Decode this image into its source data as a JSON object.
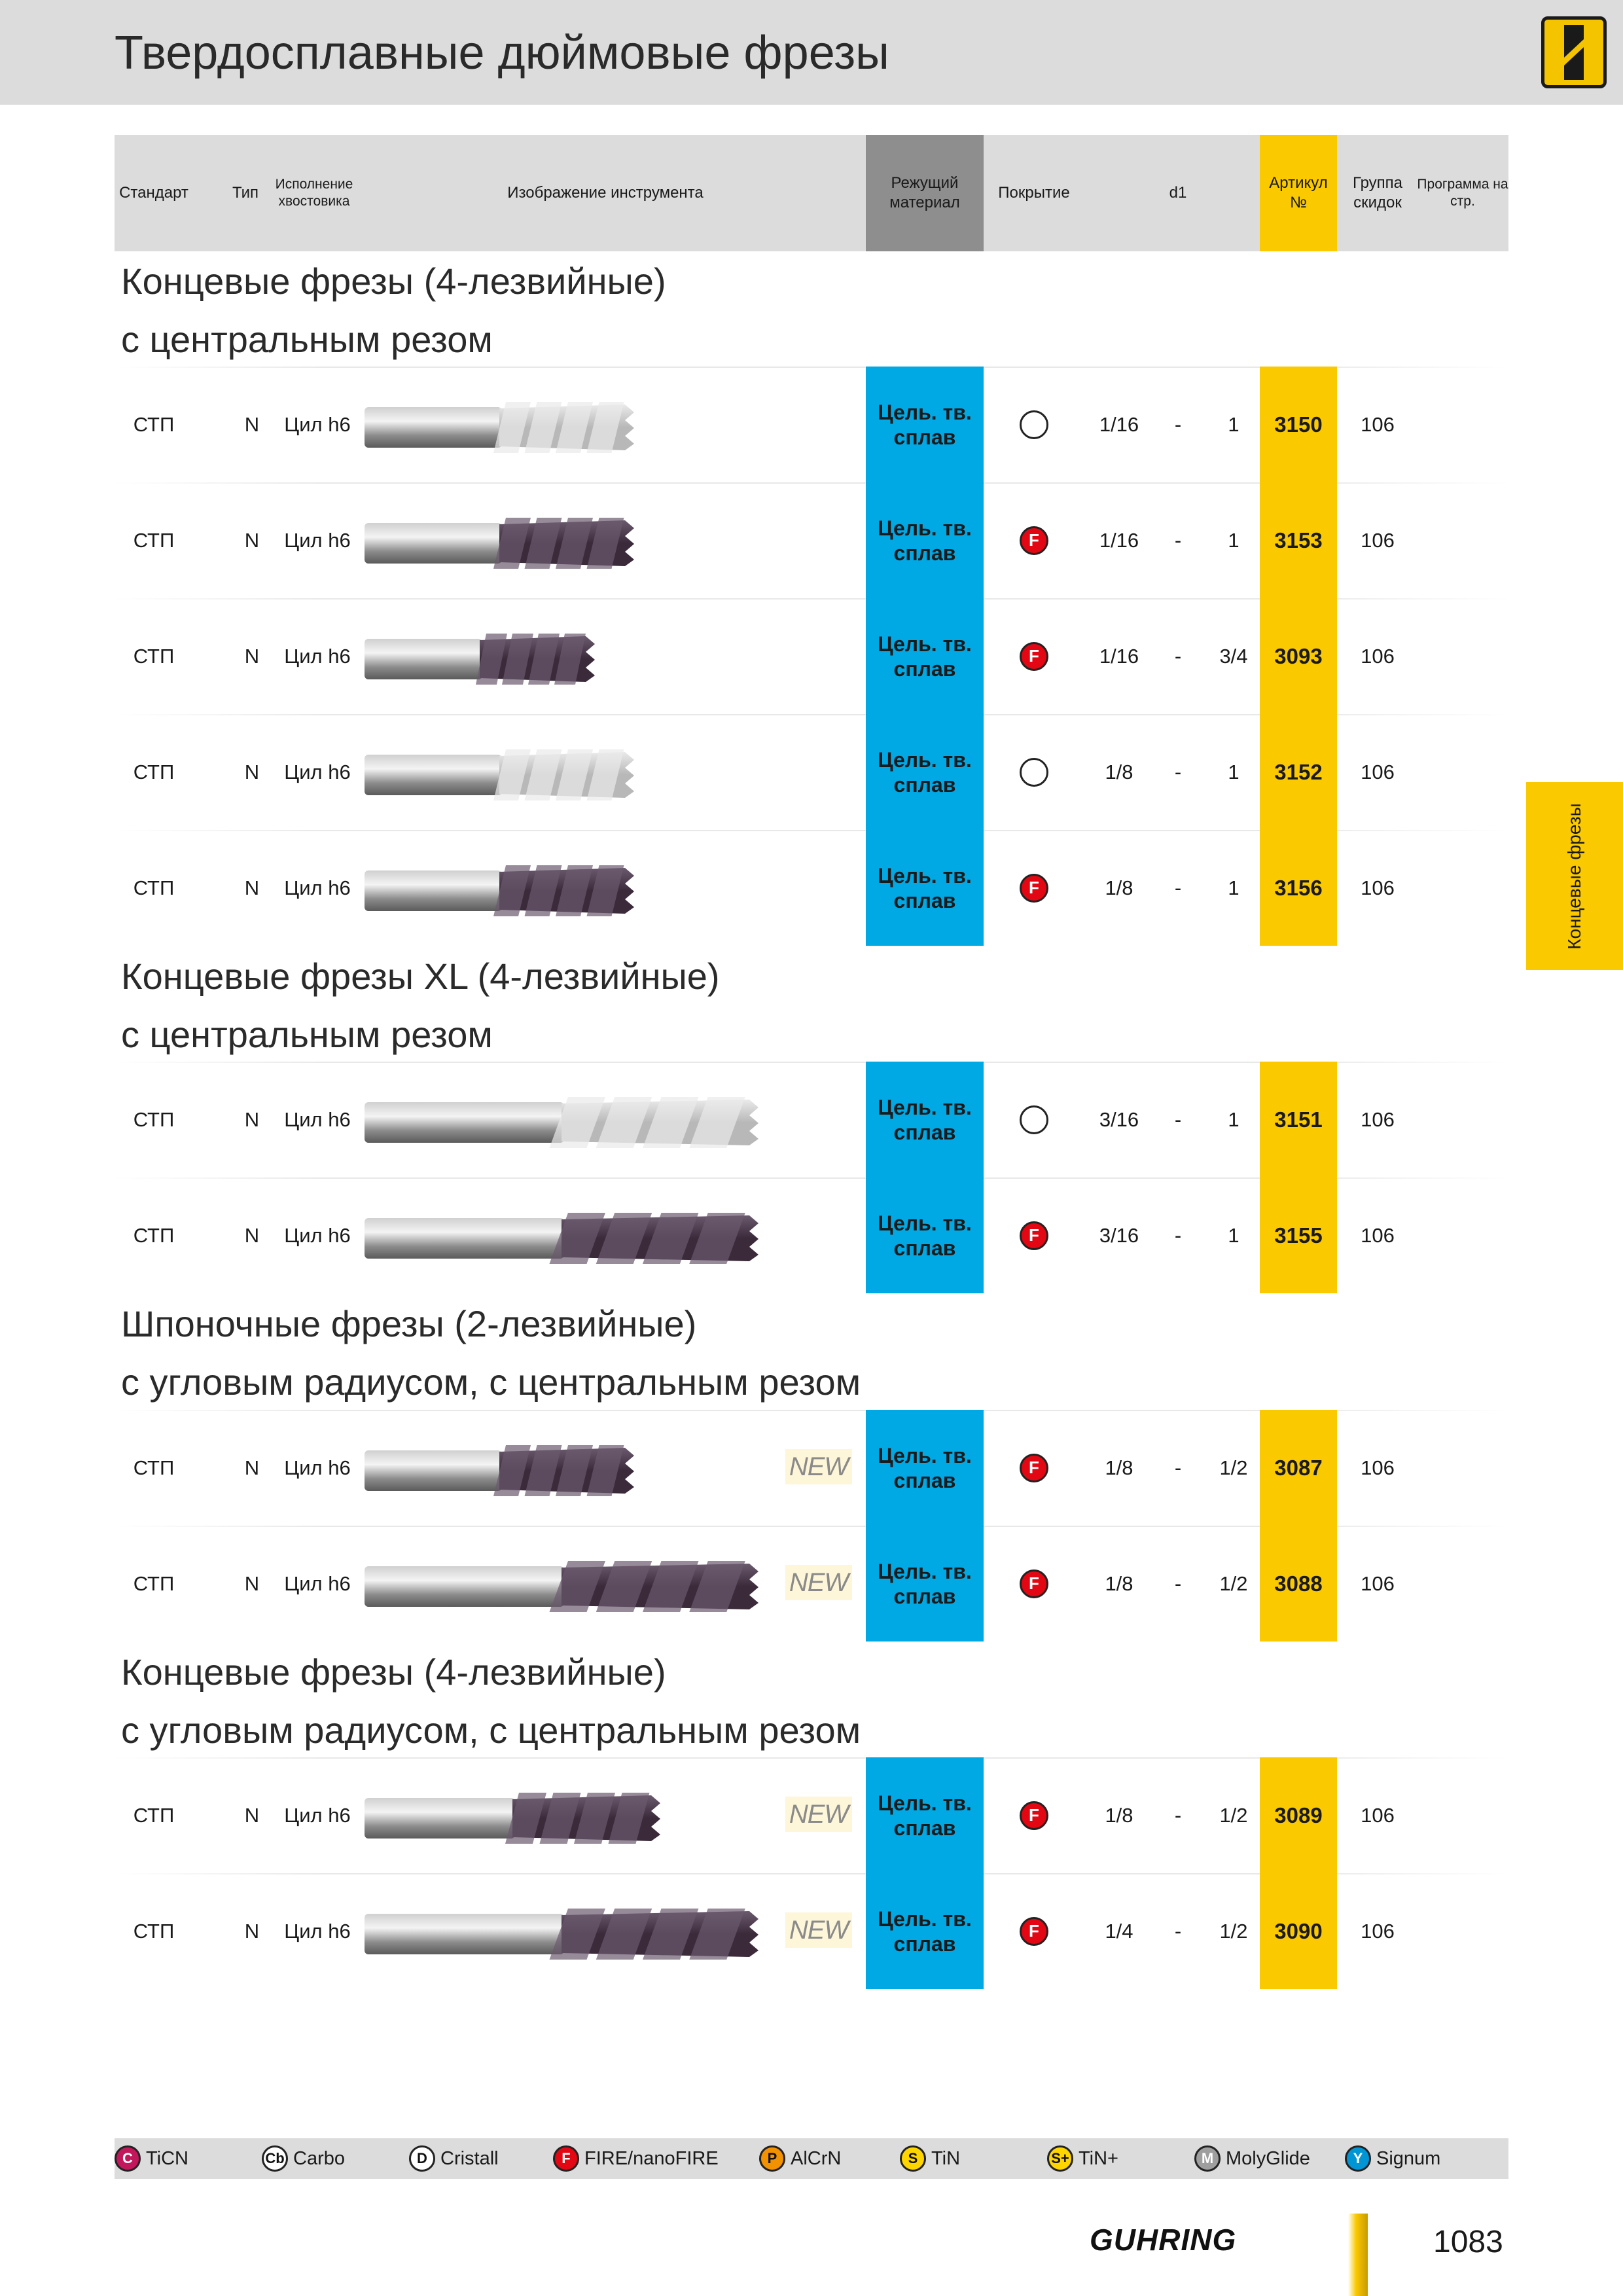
{
  "page": {
    "title": "Твердосплавные дюймовые фрезы",
    "number": "1083",
    "brand": "GUHRING",
    "side_tab": "Концевые фрезы"
  },
  "header": {
    "standard": "Стандарт",
    "type": "Тип",
    "shank": "Исполнение хвостовика",
    "image": "Изображение инструмента",
    "cutting_material": "Режущий материал",
    "coating": "Покрытие",
    "d1": "d1",
    "article": "Артикул №",
    "discount": "Группа скидок",
    "program": "Программа на стр."
  },
  "sections": [
    {
      "title1": "Концевые  фрезы (4-лезвийные)",
      "title2": "с центральным резом",
      "rows": [
        {
          "std": "СТП",
          "typ": "N",
          "shank": "Цил h6",
          "mat": "Цель. тв. сплав",
          "coat": "none",
          "d1a": "1/16",
          "dash": "-",
          "d1b": "1",
          "art": "3150",
          "grp": "106",
          "new": ""
        },
        {
          "std": "СТП",
          "typ": "N",
          "shank": "Цил h6",
          "mat": "Цель. тв. сплав",
          "coat": "F",
          "d1a": "1/16",
          "dash": "-",
          "d1b": "1",
          "art": "3153",
          "grp": "106",
          "new": ""
        },
        {
          "std": "СТП",
          "typ": "N",
          "shank": "Цил h6",
          "mat": "Цель. тв. сплав",
          "coat": "F",
          "d1a": "1/16",
          "dash": "-",
          "d1b": "3/4",
          "art": "3093",
          "grp": "106",
          "new": ""
        },
        {
          "std": "СТП",
          "typ": "N",
          "shank": "Цил h6",
          "mat": "Цель. тв. сплав",
          "coat": "none",
          "d1a": "1/8",
          "dash": "-",
          "d1b": "1",
          "art": "3152",
          "grp": "106",
          "new": ""
        },
        {
          "std": "СТП",
          "typ": "N",
          "shank": "Цил h6",
          "mat": "Цель. тв. сплав",
          "coat": "F",
          "d1a": "1/8",
          "dash": "-",
          "d1b": "1",
          "art": "3156",
          "grp": "106",
          "new": ""
        }
      ]
    },
    {
      "title1": "Концевые фрезы XL (4-лезвийные)",
      "title2": "с центральным резом",
      "rows": [
        {
          "std": "СТП",
          "typ": "N",
          "shank": "Цил h6",
          "mat": "Цель. тв. сплав",
          "coat": "none",
          "d1a": "3/16",
          "dash": "-",
          "d1b": "1",
          "art": "3151",
          "grp": "106",
          "new": ""
        },
        {
          "std": "СТП",
          "typ": "N",
          "shank": "Цил h6",
          "mat": "Цель. тв. сплав",
          "coat": "F",
          "d1a": "3/16",
          "dash": "-",
          "d1b": "1",
          "art": "3155",
          "grp": "106",
          "new": ""
        }
      ]
    },
    {
      "title1": "Шпоночные фрезы (2-лезвийные)",
      "title2": "с угловым радиусом, с центральным резом",
      "rows": [
        {
          "std": "СТП",
          "typ": "N",
          "shank": "Цил h6",
          "mat": "Цель. тв. сплав",
          "coat": "F",
          "d1a": "1/8",
          "dash": "-",
          "d1b": "1/2",
          "art": "3087",
          "grp": "106",
          "new": "NEW"
        },
        {
          "std": "СТП",
          "typ": "N",
          "shank": "Цил h6",
          "mat": "Цель. тв. сплав",
          "coat": "F",
          "d1a": "1/8",
          "dash": "-",
          "d1b": "1/2",
          "art": "3088",
          "grp": "106",
          "new": "NEW"
        }
      ]
    },
    {
      "title1": "Концевые  фрезы (4-лезвийные)",
      "title2": "с угловым радиусом, с центральным резом",
      "rows": [
        {
          "std": "СТП",
          "typ": "N",
          "shank": "Цил h6",
          "mat": "Цель. тв. сплав",
          "coat": "F",
          "d1a": "1/8",
          "dash": "-",
          "d1b": "1/2",
          "art": "3089",
          "grp": "106",
          "new": "NEW"
        },
        {
          "std": "СТП",
          "typ": "N",
          "shank": "Цил h6",
          "mat": "Цель. тв. сплав",
          "coat": "F",
          "d1a": "1/4",
          "dash": "-",
          "d1b": "1/2",
          "art": "3090",
          "grp": "106",
          "new": "NEW"
        }
      ]
    }
  ],
  "legend": [
    {
      "badge": "C",
      "label": "TiCN",
      "color": "#c2185b"
    },
    {
      "badge": "Cb",
      "label": "Carbo",
      "color": "#ffffff"
    },
    {
      "badge": "D",
      "label": "Cristall",
      "color": "#ffffff"
    },
    {
      "badge": "F",
      "label": "FIRE/nanoFIRE",
      "color": "#e30613"
    },
    {
      "badge": "P",
      "label": "AlCrN",
      "color": "#f39200"
    },
    {
      "badge": "S",
      "label": "TiN",
      "color": "#ffd500"
    },
    {
      "badge": "S+",
      "label": "TiN+",
      "color": "#ffd500"
    },
    {
      "badge": "M",
      "label": "MolyGlide",
      "color": "#9e9e9e"
    },
    {
      "badge": "Y",
      "label": "Signum",
      "color": "#0096d6"
    }
  ]
}
